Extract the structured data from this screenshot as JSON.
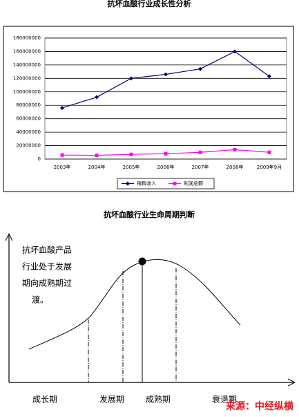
{
  "chart_data": {
    "type": "line",
    "title": "抗坏血酸行业成长性分析",
    "categories": [
      "2003年",
      "2004年",
      "2005年",
      "2006年",
      "2007年",
      "2008年",
      "2009年9月"
    ],
    "series": [
      {
        "name": "销售收入",
        "color": "#000080",
        "marker": "diamond",
        "values": [
          76000000,
          92000000,
          120000000,
          126000000,
          134000000,
          160000000,
          123000000
        ]
      },
      {
        "name": "利润总额",
        "color": "#ff00ff",
        "marker": "square",
        "values": [
          6000000,
          5500000,
          7000000,
          8000000,
          10000000,
          14000000,
          10000000
        ]
      }
    ],
    "ylim": [
      0,
      180000000
    ],
    "yticks": [
      0,
      20000000,
      40000000,
      60000000,
      80000000,
      100000000,
      120000000,
      140000000,
      160000000,
      180000000
    ],
    "grid": true,
    "legend": "bottom"
  },
  "lifecycle": {
    "title": "抗坏血酸行业生命周期判断",
    "note": [
      "抗坏血酸产品",
      "行业处于发展",
      "期向成熟期过",
      "渡。"
    ],
    "stages": [
      "成长期",
      "发展期",
      "成熟期",
      "衰退期"
    ],
    "source": "来源：中经纵横"
  }
}
